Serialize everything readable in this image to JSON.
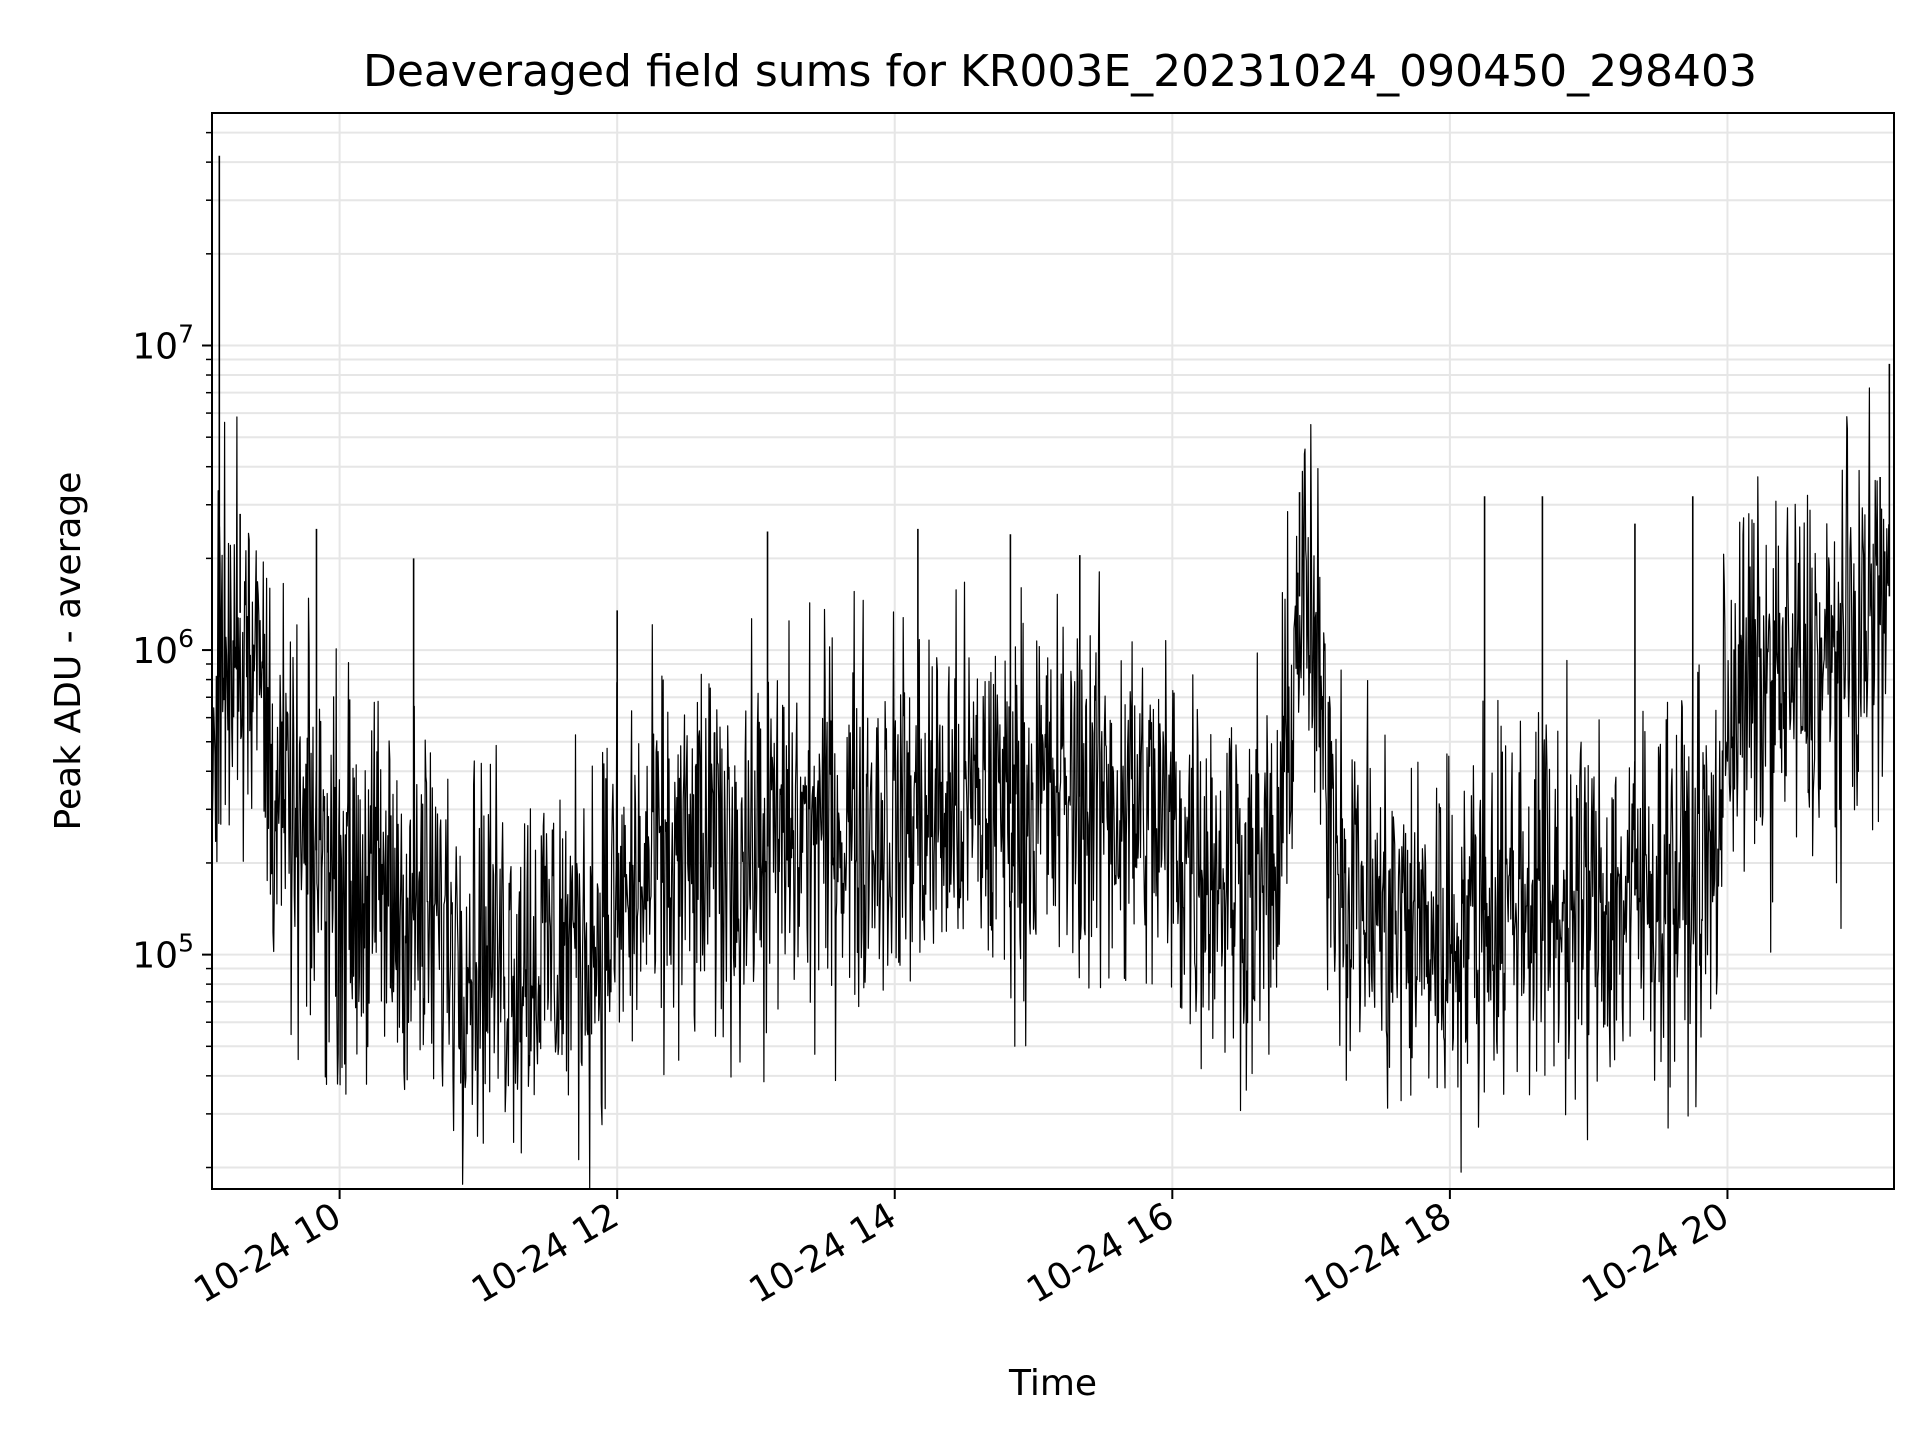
{
  "chart_data": {
    "type": "line",
    "title": "Deaveraged field sums for KR003E_20231024_090450_298403",
    "xlabel": "Time",
    "ylabel": "Peak ADU - average",
    "y_scale": "log",
    "ylim": [
      17000,
      58000000
    ],
    "xlim": [
      "2023-10-24T09:04:50",
      "2023-10-24T21:12:00"
    ],
    "grid": true,
    "legend": "none",
    "colors": {
      "line": "#000000",
      "grid": "#e6e6e6",
      "axes": "#000000"
    },
    "x_ticks": [
      {
        "label": "10-24 10",
        "value": "2023-10-24T10:00:00"
      },
      {
        "label": "10-24 12",
        "value": "2023-10-24T12:00:00"
      },
      {
        "label": "10-24 14",
        "value": "2023-10-24T14:00:00"
      },
      {
        "label": "10-24 16",
        "value": "2023-10-24T16:00:00"
      },
      {
        "label": "10-24 18",
        "value": "2023-10-24T18:00:00"
      },
      {
        "label": "10-24 20",
        "value": "2023-10-24T20:00:00"
      }
    ],
    "y_ticks": [
      {
        "value": 100000,
        "base": "10",
        "exp": "5"
      },
      {
        "value": 1000000,
        "base": "10",
        "exp": "6"
      },
      {
        "value": 10000000,
        "base": "10",
        "exp": "7"
      }
    ],
    "series": [
      {
        "x": [
          "2023-10-24T09:05",
          "2023-10-24T09:10",
          "2023-10-24T09:15",
          "2023-10-24T09:20",
          "2023-10-24T09:25",
          "2023-10-24T09:30",
          "2023-10-24T09:35",
          "2023-10-24T09:40",
          "2023-10-24T09:45",
          "2023-10-24T09:50",
          "2023-10-24T10:00",
          "2023-10-24T10:15",
          "2023-10-24T10:30",
          "2023-10-24T10:45",
          "2023-10-24T11:00",
          "2023-10-24T11:15",
          "2023-10-24T11:30",
          "2023-10-24T11:45",
          "2023-10-24T12:00",
          "2023-10-24T12:15",
          "2023-10-24T12:30",
          "2023-10-24T12:45",
          "2023-10-24T13:00",
          "2023-10-24T13:15",
          "2023-10-24T13:30",
          "2023-10-24T13:45",
          "2023-10-24T14:00",
          "2023-10-24T14:15",
          "2023-10-24T14:30",
          "2023-10-24T14:45",
          "2023-10-24T15:00",
          "2023-10-24T15:15",
          "2023-10-24T15:30",
          "2023-10-24T15:45",
          "2023-10-24T16:00",
          "2023-10-24T16:15",
          "2023-10-24T16:30",
          "2023-10-24T16:45",
          "2023-10-24T16:55",
          "2023-10-24T17:00",
          "2023-10-24T17:05",
          "2023-10-24T17:15",
          "2023-10-24T17:30",
          "2023-10-24T17:45",
          "2023-10-24T18:00",
          "2023-10-24T18:15",
          "2023-10-24T18:30",
          "2023-10-24T18:45",
          "2023-10-24T19:00",
          "2023-10-24T19:15",
          "2023-10-24T19:30",
          "2023-10-24T19:45",
          "2023-10-24T19:55",
          "2023-10-24T20:00",
          "2023-10-24T20:15",
          "2023-10-24T20:30",
          "2023-10-24T20:45",
          "2023-10-24T21:00",
          "2023-10-24T21:10"
        ],
        "y": [
          700000,
          900000,
          1500000,
          1100000,
          900000,
          450000,
          300000,
          250000,
          200000,
          220000,
          180000,
          160000,
          140000,
          120000,
          110000,
          100000,
          105000,
          110000,
          140000,
          180000,
          200000,
          210000,
          220000,
          240000,
          260000,
          270000,
          280000,
          290000,
          300000,
          310000,
          320000,
          330000,
          330000,
          300000,
          250000,
          200000,
          180000,
          170000,
          1500000,
          1200000,
          500000,
          180000,
          130000,
          120000,
          115000,
          140000,
          160000,
          150000,
          140000,
          150000,
          170000,
          180000,
          200000,
          700000,
          750000,
          800000,
          850000,
          1200000,
          1500000
        ]
      }
    ],
    "spikes": [
      {
        "x": "2023-10-24T09:08",
        "y": 42000000
      },
      {
        "x": "2023-10-24T09:17",
        "y": 2800000
      },
      {
        "x": "2023-10-24T09:50",
        "y": 2500000
      },
      {
        "x": "2023-10-24T10:32",
        "y": 2000000
      },
      {
        "x": "2023-10-24T12:00",
        "y": 1350000
      },
      {
        "x": "2023-10-24T13:05",
        "y": 2450000
      },
      {
        "x": "2023-10-24T14:10",
        "y": 2500000
      },
      {
        "x": "2023-10-24T14:50",
        "y": 2400000
      },
      {
        "x": "2023-10-24T15:20",
        "y": 2050000
      },
      {
        "x": "2023-10-24T16:55",
        "y": 3300000
      },
      {
        "x": "2023-10-24T18:15",
        "y": 3200000
      },
      {
        "x": "2023-10-24T18:40",
        "y": 3200000
      },
      {
        "x": "2023-10-24T19:20",
        "y": 2600000
      },
      {
        "x": "2023-10-24T19:45",
        "y": 3200000
      },
      {
        "x": "2023-10-24T21:06",
        "y": 3700000
      },
      {
        "x": "2023-10-24T21:10",
        "y": 8700000
      }
    ]
  }
}
